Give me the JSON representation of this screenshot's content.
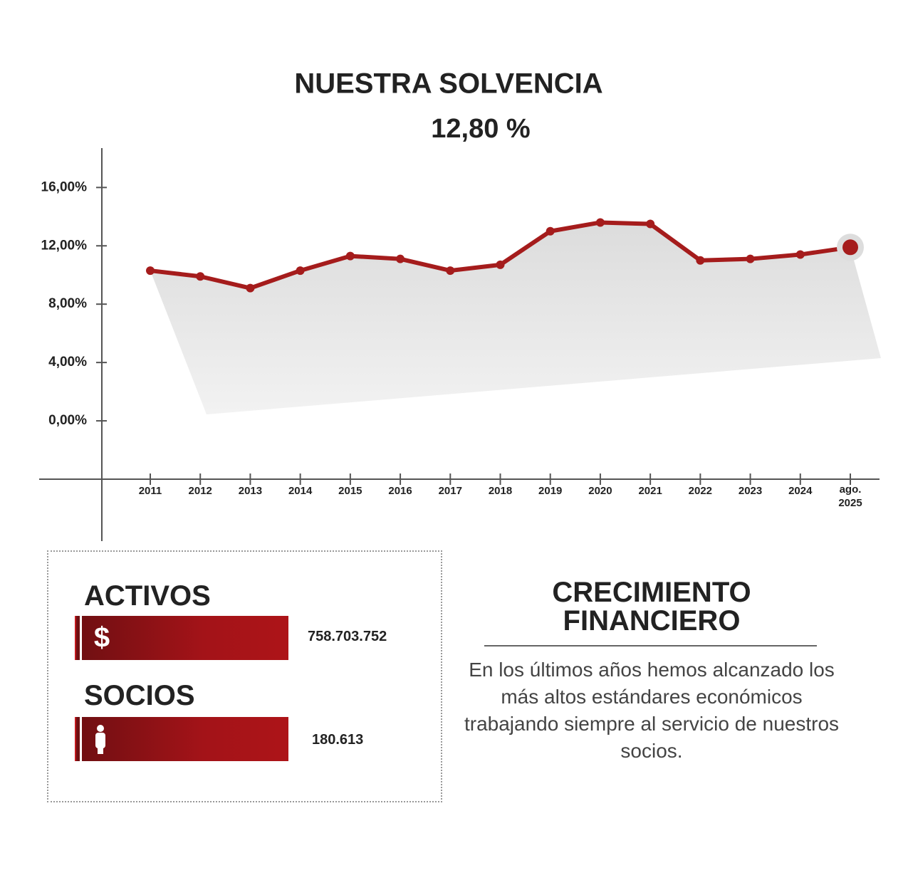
{
  "chart_data": {
    "type": "line",
    "title": "NUESTRA SOLVENCIA",
    "subtitle": "12,80 %",
    "categories": [
      "2011",
      "2012",
      "2013",
      "2014",
      "2015",
      "2016",
      "2017",
      "2018",
      "2019",
      "2020",
      "2021",
      "2022",
      "2023",
      "2024",
      "ago. 2025"
    ],
    "series": [
      {
        "name": "Solvencia",
        "color": "#a51c1c",
        "values": [
          10.3,
          9.9,
          9.1,
          10.3,
          11.3,
          11.1,
          10.3,
          10.7,
          13.0,
          13.6,
          13.5,
          11.0,
          11.1,
          11.4,
          11.9
        ]
      }
    ],
    "ylim": [
      -4,
      18.7
    ],
    "yticks": [
      {
        "value": 0,
        "label": "0,00%"
      },
      {
        "value": 4,
        "label": "4,00%"
      },
      {
        "value": 8,
        "label": "8,00%"
      },
      {
        "value": 12,
        "label": "12,00%"
      },
      {
        "value": 16,
        "label": "16,00%"
      }
    ]
  },
  "stats": [
    {
      "label": "ACTIVOS",
      "value": "758.703.752"
    },
    {
      "label": "SOCIOS",
      "value": "180.613"
    }
  ],
  "info": {
    "title": "CRECIMIENTO FINANCIERO",
    "text": "En los últimos años hemos alcanzado los más altos estándares económicos trabajando siempre al servicio de nuestros socios."
  }
}
